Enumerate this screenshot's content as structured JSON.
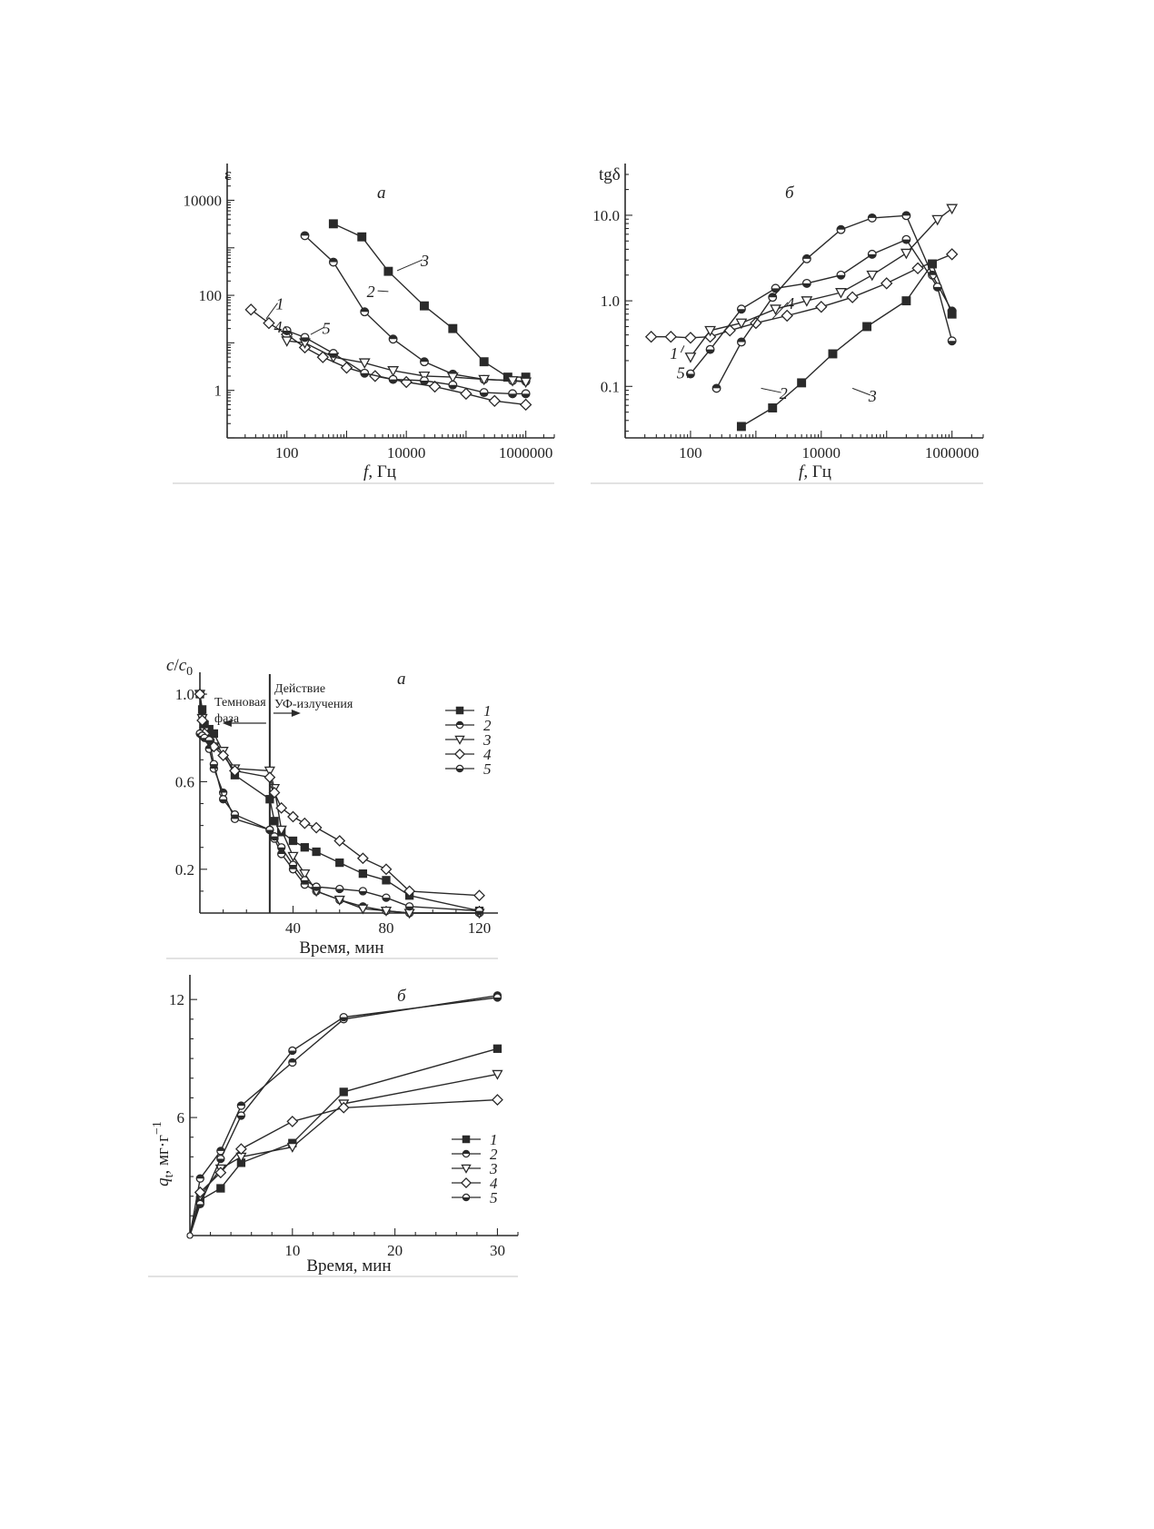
{
  "colors": {
    "ink": "#2a2a2a",
    "hollow": "#ffffff",
    "rule": "#d9d9d9"
  },
  "chart_data": [
    {
      "id": "eps",
      "type": "line",
      "panel_label": "а",
      "ylabel": "ε",
      "xlabel_italic": "f",
      "xlabel_rest": ", Гц",
      "x_scale": "log",
      "y_scale": "log",
      "xlim": [
        10,
        3000000
      ],
      "ylim": [
        0.1,
        35000
      ],
      "x_ticks": [
        100,
        10000,
        1000000
      ],
      "x_tick_labels": [
        "100",
        "10000",
        "1000000"
      ],
      "y_ticks": [
        1,
        100,
        10000
      ],
      "y_tick_labels": [
        "1",
        "100",
        "10000"
      ],
      "series": [
        {
          "name": "1",
          "marker": "diamond-hollow",
          "x": [
            25,
            50,
            100,
            200,
            400,
            1000,
            3000,
            10000,
            30000,
            100000,
            300000,
            1000000
          ],
          "y": [
            50,
            26,
            15,
            8,
            5,
            3,
            2,
            1.5,
            1.2,
            0.85,
            0.6,
            0.5
          ]
        },
        {
          "name": "2",
          "marker": "circle-halftop",
          "x": [
            200,
            600,
            2000,
            6000,
            20000,
            60000,
            200000,
            600000,
            1000000
          ],
          "y": [
            1800,
            500,
            45,
            12,
            4,
            2.2,
            1.7,
            1.6,
            1.55
          ]
        },
        {
          "name": "3",
          "marker": "square-filled",
          "x": [
            600,
            1800,
            5000,
            20000,
            60000,
            200000,
            500000,
            1000000
          ],
          "y": [
            3200,
            1700,
            320,
            60,
            20,
            4,
            1.9,
            1.9
          ]
        },
        {
          "name": "4",
          "marker": "triangle-down-hollow",
          "x": [
            100,
            200,
            600,
            2000,
            6000,
            20000,
            60000,
            200000,
            600000,
            1000000
          ],
          "y": [
            11,
            10,
            5,
            3.8,
            2.6,
            2,
            1.9,
            1.7,
            1.6,
            1.5
          ]
        },
        {
          "name": "5",
          "marker": "circle-halfbottom",
          "x": [
            100,
            200,
            600,
            2000,
            6000,
            20000,
            60000,
            200000,
            600000,
            1000000
          ],
          "y": [
            18,
            13,
            6,
            2.3,
            1.7,
            1.6,
            1.3,
            0.9,
            0.85,
            0.85
          ]
        }
      ],
      "callouts": [
        {
          "text": "1",
          "x": 75,
          "y": 55,
          "lx": 45,
          "ly": 32
        },
        {
          "text": "2",
          "x": 2500,
          "y": 100,
          "lx": 5000,
          "ly": 120
        },
        {
          "text": "3",
          "x": 20000,
          "y": 450,
          "lx": 7000,
          "ly": 330
        },
        {
          "text": "4",
          "x": 70,
          "y": 18,
          "lx": 120,
          "ly": 12
        },
        {
          "text": "5",
          "x": 450,
          "y": 17,
          "lx": 250,
          "ly": 15
        }
      ]
    },
    {
      "id": "tan",
      "type": "line",
      "panel_label": "б",
      "ylabel": "tgδ",
      "xlabel_italic": "f",
      "xlabel_rest": ", Гц",
      "x_scale": "log",
      "y_scale": "log",
      "xlim": [
        10,
        3000000
      ],
      "ylim": [
        0.025,
        30
      ],
      "x_ticks": [
        100,
        10000,
        1000000
      ],
      "x_tick_labels": [
        "100",
        "10000",
        "1000000"
      ],
      "y_ticks": [
        0.1,
        1.0,
        10.0
      ],
      "y_tick_labels": [
        "0.1",
        "1.0",
        "10.0"
      ],
      "series": [
        {
          "name": "1",
          "marker": "diamond-hollow",
          "x": [
            25,
            50,
            100,
            200,
            400,
            1000,
            3000,
            10000,
            30000,
            100000,
            300000,
            1000000
          ],
          "y": [
            0.38,
            0.38,
            0.37,
            0.38,
            0.45,
            0.55,
            0.67,
            0.85,
            1.1,
            1.6,
            2.4,
            3.5
          ]
        },
        {
          "name": "2",
          "marker": "circle-halftop",
          "x": [
            250,
            600,
            1800,
            6000,
            20000,
            60000,
            200000,
            500000,
            1000000
          ],
          "y": [
            0.095,
            0.33,
            1.1,
            3.1,
            6.8,
            9.3,
            9.9,
            2.0,
            0.76
          ]
        },
        {
          "name": "3",
          "marker": "square-filled",
          "x": [
            600,
            1800,
            5000,
            15000,
            50000,
            200000,
            500000,
            1000000
          ],
          "y": [
            0.034,
            0.056,
            0.11,
            0.24,
            0.5,
            1.0,
            2.7,
            0.7
          ]
        },
        {
          "name": "4",
          "marker": "triangle-down-hollow",
          "x": [
            100,
            200,
            600,
            2000,
            6000,
            20000,
            60000,
            200000,
            600000,
            1000000
          ],
          "y": [
            0.22,
            0.45,
            0.55,
            0.8,
            1.0,
            1.25,
            2.0,
            3.6,
            8.9,
            12.0
          ]
        },
        {
          "name": "5",
          "marker": "circle-halfbottom",
          "x": [
            100,
            200,
            600,
            2000,
            6000,
            20000,
            60000,
            200000,
            600000,
            1000000
          ],
          "y": [
            0.14,
            0.27,
            0.8,
            1.4,
            1.6,
            2.0,
            3.5,
            5.2,
            1.45,
            0.34
          ]
        }
      ],
      "callouts": [
        {
          "text": "1",
          "x": 55,
          "y": 0.22,
          "lx": 80,
          "ly": 0.3
        },
        {
          "text": "5",
          "x": 70,
          "y": 0.13,
          "lx": 90,
          "ly": 0.125
        },
        {
          "text": "2",
          "x": 2600,
          "y": 0.075,
          "lx": 1200,
          "ly": 0.095
        },
        {
          "text": "3",
          "x": 60000,
          "y": 0.07,
          "lx": 30000,
          "ly": 0.095
        },
        {
          "text": "4",
          "x": 3300,
          "y": 0.85,
          "lx": 1800,
          "ly": 0.62
        }
      ]
    },
    {
      "id": "cc0",
      "type": "line",
      "panel_label": "а",
      "ylabel_italic": "c",
      "ylabel_rest": "/",
      "ylabel_italic2": "c",
      "ylabel_sub": "0",
      "xlabel": "Время, мин",
      "xlim": [
        0,
        128
      ],
      "ylim": [
        0,
        1.05
      ],
      "x_ticks": [
        40,
        80,
        120
      ],
      "x_tick_labels": [
        "40",
        "80",
        "120"
      ],
      "y_ticks": [
        0.2,
        0.6,
        1.0
      ],
      "y_tick_labels": [
        "0.2",
        "0.6",
        "1.0"
      ],
      "vline_x": 30,
      "annotation_dark": [
        "Темновая",
        "фаза"
      ],
      "annotation_uv": [
        "Действие",
        "УФ-излучения"
      ],
      "legend_position": "top-right",
      "series": [
        {
          "name": "1",
          "marker": "square-filled",
          "x": [
            0,
            1,
            2,
            4,
            6,
            15,
            30,
            32,
            35,
            40,
            45,
            50,
            60,
            70,
            80,
            90,
            120
          ],
          "y": [
            1.0,
            0.93,
            0.86,
            0.84,
            0.82,
            0.63,
            0.52,
            0.42,
            0.37,
            0.33,
            0.3,
            0.28,
            0.23,
            0.18,
            0.15,
            0.08,
            0.01
          ]
        },
        {
          "name": "2",
          "marker": "circle-halftop",
          "x": [
            0,
            1,
            2,
            4,
            6,
            10,
            15,
            30,
            32,
            35,
            40,
            45,
            50,
            60,
            70,
            80,
            90,
            120
          ],
          "y": [
            1.0,
            0.9,
            0.83,
            0.75,
            0.66,
            0.55,
            0.43,
            0.38,
            0.34,
            0.27,
            0.2,
            0.13,
            0.1,
            0.06,
            0.03,
            0.01,
            0.0,
            0.0
          ]
        },
        {
          "name": "3",
          "marker": "triangle-down-hollow",
          "x": [
            0,
            1,
            2,
            4,
            6,
            10,
            15,
            30,
            32,
            35,
            40,
            45,
            50,
            60,
            70,
            80,
            90,
            120
          ],
          "y": [
            1.0,
            0.89,
            0.83,
            0.78,
            0.76,
            0.74,
            0.66,
            0.65,
            0.57,
            0.38,
            0.26,
            0.18,
            0.1,
            0.06,
            0.02,
            0.01,
            0.0,
            0.0
          ]
        },
        {
          "name": "4",
          "marker": "diamond-hollow",
          "x": [
            0,
            1,
            2,
            4,
            6,
            10,
            15,
            30,
            32,
            35,
            40,
            45,
            50,
            60,
            70,
            80,
            90,
            120
          ],
          "y": [
            1.0,
            0.88,
            0.82,
            0.79,
            0.76,
            0.72,
            0.65,
            0.62,
            0.55,
            0.48,
            0.44,
            0.41,
            0.39,
            0.33,
            0.25,
            0.2,
            0.1,
            0.08
          ]
        },
        {
          "name": "5",
          "marker": "circle-halfbottom",
          "x": [
            0,
            1,
            2,
            4,
            6,
            10,
            15,
            30,
            32,
            35,
            40,
            45,
            50,
            60,
            70,
            80,
            90,
            120
          ],
          "y": [
            0.82,
            0.81,
            0.8,
            0.79,
            0.68,
            0.52,
            0.45,
            0.38,
            0.35,
            0.3,
            0.22,
            0.15,
            0.12,
            0.11,
            0.1,
            0.07,
            0.03,
            0.01
          ]
        }
      ]
    },
    {
      "id": "qt",
      "type": "line",
      "panel_label": "б",
      "ylabel_italic": "q",
      "ylabel_sub": "t",
      "ylabel_rest": ", мг·г",
      "ylabel_sup": "−1",
      "xlabel": "Время, мин",
      "xlim": [
        0,
        32
      ],
      "ylim": [
        0,
        12.7
      ],
      "x_ticks": [
        10,
        20,
        30
      ],
      "x_tick_labels": [
        "10",
        "20",
        "30"
      ],
      "y_ticks": [
        6,
        12
      ],
      "y_tick_labels": [
        "6",
        "12"
      ],
      "legend_position": "bottom-right",
      "series": [
        {
          "name": "1",
          "marker": "square-filled",
          "x": [
            0,
            1,
            3,
            5,
            10,
            15,
            30
          ],
          "y": [
            0,
            1.8,
            2.4,
            3.7,
            4.7,
            7.3,
            9.5
          ]
        },
        {
          "name": "2",
          "marker": "circle-halftop",
          "x": [
            0,
            1,
            3,
            5,
            10,
            15,
            30
          ],
          "y": [
            0,
            2.9,
            4.3,
            6.6,
            8.8,
            11.0,
            12.2
          ]
        },
        {
          "name": "3",
          "marker": "triangle-down-hollow",
          "x": [
            0,
            1,
            3,
            5,
            10,
            15,
            30
          ],
          "y": [
            0,
            2.0,
            3.4,
            4.0,
            4.5,
            6.7,
            8.2
          ]
        },
        {
          "name": "4",
          "marker": "diamond-hollow",
          "x": [
            0,
            1,
            3,
            5,
            10,
            15,
            30
          ],
          "y": [
            0,
            2.2,
            3.2,
            4.4,
            5.8,
            6.5,
            6.9
          ]
        },
        {
          "name": "5",
          "marker": "circle-halfbottom",
          "x": [
            0,
            1,
            3,
            5,
            10,
            15,
            30
          ],
          "y": [
            0,
            1.6,
            3.9,
            6.1,
            9.4,
            11.1,
            12.1
          ]
        }
      ]
    }
  ]
}
